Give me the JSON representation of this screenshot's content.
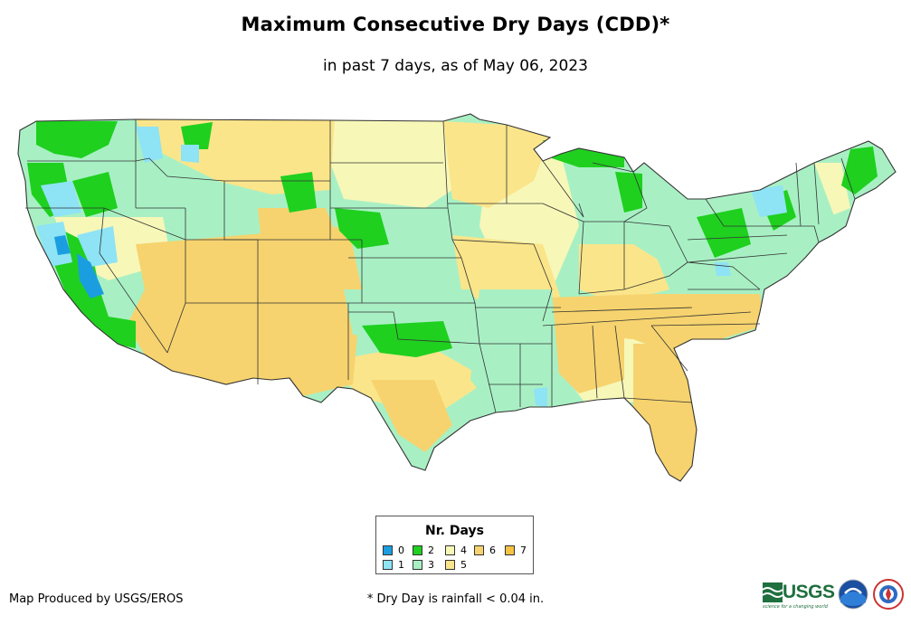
{
  "title": "Maximum Consecutive Dry Days (CDD)*",
  "subtitle": "in past 7 days, as of May 06, 2023",
  "legend": {
    "title": "Nr. Days",
    "items": [
      {
        "label": "0",
        "color": "#1a9ee0"
      },
      {
        "label": "1",
        "color": "#8ee3f5"
      },
      {
        "label": "2",
        "color": "#1fd01f"
      },
      {
        "label": "3",
        "color": "#a8f0c4"
      },
      {
        "label": "4",
        "color": "#f7f7b8"
      },
      {
        "label": "5",
        "color": "#fbe58a"
      },
      {
        "label": "6",
        "color": "#f6d36e"
      },
      {
        "label": "7",
        "color": "#f5c243"
      }
    ]
  },
  "credit": "Map Produced by USGS/EROS",
  "footnote": "* Dry Day is rainfall < 0.04 in.",
  "logos": {
    "usgs": "USGS",
    "usgs_tagline": "science for a changing world",
    "noaa": "noaa-logo-icon",
    "nws": "nws-logo-icon"
  }
}
